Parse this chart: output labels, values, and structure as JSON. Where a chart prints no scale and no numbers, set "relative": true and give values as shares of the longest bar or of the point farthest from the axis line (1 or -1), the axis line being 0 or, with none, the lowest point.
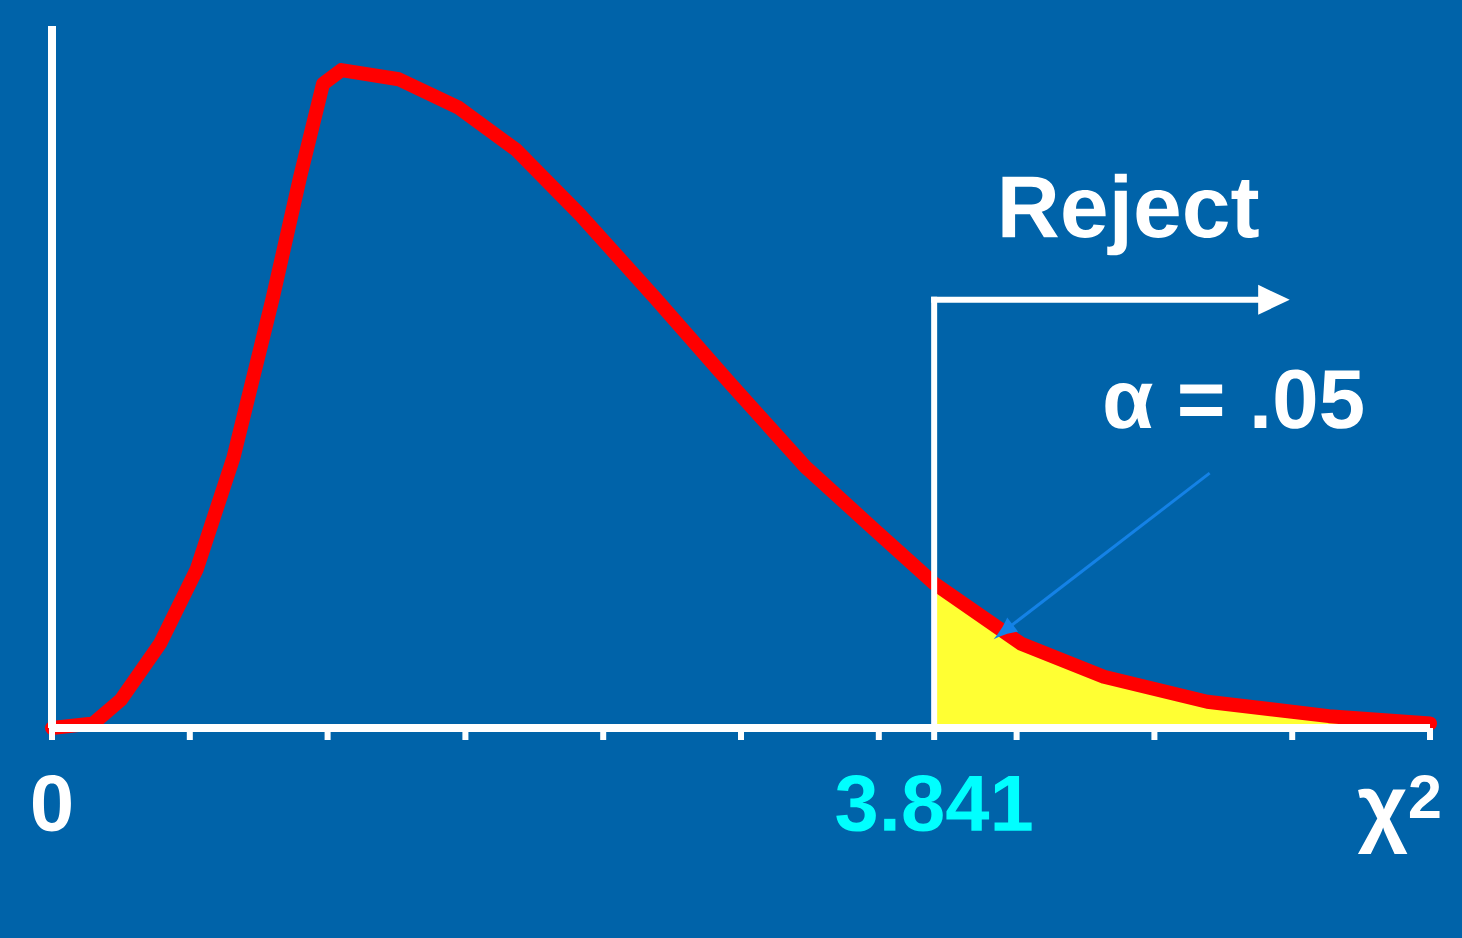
{
  "chart_data": {
    "type": "line",
    "relative": true,
    "xlabel": "χ$^{2}$",
    "xlim": [
      0,
      6
    ],
    "xticks": [
      0,
      {
        "value": 0.6,
        "label": null
      },
      {
        "value": 1.2,
        "label": null
      },
      {
        "value": 1.8,
        "label": null
      },
      {
        "value": 2.4,
        "label": null
      },
      {
        "value": 3.0,
        "label": null
      },
      {
        "value": 3.6,
        "label": null
      },
      3.841,
      {
        "value": 4.2,
        "label": null
      },
      {
        "value": 4.8,
        "label": null
      },
      {
        "value": 5.4,
        "label": null
      },
      {
        "value": 6.0,
        "label": null
      }
    ],
    "series": [
      {
        "type": "area",
        "color": "#ffff33",
        "x": [
          3.841,
          4.22,
          4.58,
          5.03,
          5.56,
          6.0
        ],
        "values": [
          0.22,
          0.128,
          0.078,
          0.04,
          0.018,
          0.007
        ]
      },
      {
        "color": "#ff0000",
        "x": [
          0,
          0.18,
          0.3,
          0.47,
          0.63,
          0.79,
          0.96,
          1.08,
          1.18,
          1.26,
          1.51,
          1.77,
          2.02,
          2.3,
          2.63,
          2.95,
          3.28,
          3.57,
          3.84,
          4.22,
          4.58,
          5.03,
          5.56,
          6.0
        ],
        "values": [
          0,
          0.007,
          0.043,
          0.128,
          0.241,
          0.411,
          0.652,
          0.837,
          0.979,
          1.0,
          0.986,
          0.943,
          0.879,
          0.78,
          0.652,
          0.525,
          0.397,
          0.305,
          0.22,
          0.128,
          0.078,
          0.04,
          0.018,
          0.007
        ]
      }
    ],
    "ref_lines": [
      {
        "axis": "x",
        "value": 3.841,
        "label": "Reject",
        "color": "#ffffff"
      }
    ],
    "annotations": [
      {
        "text": "α = .05",
        "x": 4.1,
        "y": 0.135
      }
    ]
  }
}
